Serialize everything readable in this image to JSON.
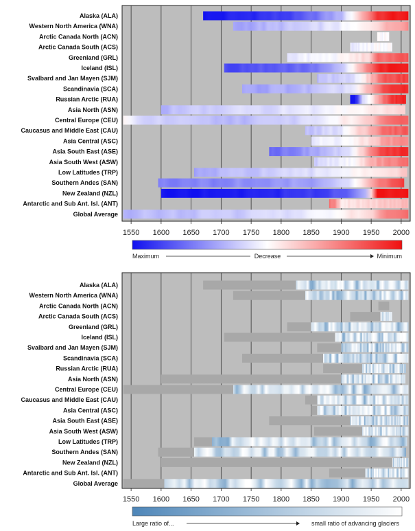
{
  "regions": [
    "Alaska (ALA)",
    "Western North America (WNA)",
    "Arctic Canada North (ACN)",
    "Arctic Canada South (ACS)",
    "Greenland (GRL)",
    "Iceland (ISL)",
    "Svalbard and Jan Mayen (SJM)",
    "Scandinavia (SCA)",
    "Russian Arctic (RUA)",
    "Asia North (ASN)",
    "Central Europe (CEU)",
    "Caucasus and Middle East (CAU)",
    "Asia Central (ASC)",
    "Asia South East (ASE)",
    "Asia South West (ASW)",
    "Low Latitudes (TRP)",
    "Southern Andes (SAN)",
    "New Zealand (NZL)",
    "Antarctic and Sub Ant. Isl. (ANT)",
    "Global Average"
  ],
  "chart_data": [
    {
      "type": "heatmap",
      "title": "",
      "xlabel": "",
      "xlim": [
        1535,
        2015
      ],
      "xticks": [
        1550,
        1600,
        1650,
        1700,
        1750,
        1800,
        1850,
        1900,
        1950,
        2000
      ],
      "colorbar": {
        "colors": [
          "#1010f0",
          "#ffffff",
          "#f01010"
        ],
        "left_label": "Maximum",
        "center_label": "Decrease",
        "right_label": "Minimum"
      },
      "series": [
        {
          "name": "Alaska (ALA)",
          "start": 1670,
          "end": 2012,
          "v": [
            [
              1670,
              0.0
            ],
            [
              1830,
              0.12
            ],
            [
              1900,
              0.35
            ],
            [
              1950,
              0.8
            ],
            [
              1960,
              0.93
            ],
            [
              2012,
              1.0
            ]
          ]
        },
        {
          "name": "Western North America (WNA)",
          "start": 1720,
          "end": 2012,
          "v": [
            [
              1720,
              0.3
            ],
            [
              1850,
              0.4
            ],
            [
              1930,
              0.5
            ],
            [
              1960,
              0.6
            ],
            [
              2000,
              0.72
            ],
            [
              2012,
              0.75
            ]
          ]
        },
        {
          "name": "Arctic Canada North (ACN)",
          "start": 1960,
          "end": 1980,
          "v": [
            [
              1960,
              0.5
            ],
            [
              1980,
              0.5
            ]
          ]
        },
        {
          "name": "Arctic Canada South (ACS)",
          "start": 1915,
          "end": 1985,
          "v": [
            [
              1915,
              0.45
            ],
            [
              1960,
              0.5
            ],
            [
              1965,
              0.5
            ],
            [
              1985,
              0.5
            ]
          ]
        },
        {
          "name": "Greenland (GRL)",
          "start": 1810,
          "end": 2012,
          "v": [
            [
              1810,
              0.45
            ],
            [
              1900,
              0.5
            ],
            [
              1950,
              0.6
            ],
            [
              1960,
              0.8
            ],
            [
              2012,
              0.85
            ]
          ]
        },
        {
          "name": "Iceland (ISL)",
          "start": 1705,
          "end": 2012,
          "v": [
            [
              1705,
              0.12
            ],
            [
              1850,
              0.2
            ],
            [
              1900,
              0.35
            ],
            [
              1950,
              0.8
            ],
            [
              1965,
              0.95
            ],
            [
              2012,
              0.98
            ]
          ]
        },
        {
          "name": "Svalbard and Jan Mayen (SJM)",
          "start": 1860,
          "end": 2012,
          "v": [
            [
              1860,
              0.35
            ],
            [
              1930,
              0.45
            ],
            [
              1955,
              0.7
            ],
            [
              1970,
              0.85
            ],
            [
              2012,
              0.9
            ]
          ]
        },
        {
          "name": "Scandinavia (SCA)",
          "start": 1735,
          "end": 2012,
          "v": [
            [
              1735,
              0.3
            ],
            [
              1850,
              0.35
            ],
            [
              1920,
              0.45
            ],
            [
              1960,
              0.75
            ],
            [
              1975,
              0.9
            ],
            [
              2012,
              0.95
            ]
          ]
        },
        {
          "name": "Russian Arctic (RUA)",
          "start": 1915,
          "end": 2008,
          "v": [
            [
              1915,
              0.0
            ],
            [
              1925,
              0.05
            ],
            [
              1935,
              0.4
            ],
            [
              1960,
              0.65
            ],
            [
              1980,
              0.9
            ],
            [
              2008,
              0.98
            ]
          ]
        },
        {
          "name": "Asia North (ASN)",
          "start": 1600,
          "end": 2007,
          "v": [
            [
              1600,
              0.35
            ],
            [
              1700,
              0.4
            ],
            [
              1850,
              0.45
            ],
            [
              1950,
              0.55
            ],
            [
              2007,
              0.6
            ]
          ]
        },
        {
          "name": "Central Europe (CEU)",
          "start": 1537,
          "end": 2012,
          "v": [
            [
              1537,
              0.5
            ],
            [
              1580,
              0.4
            ],
            [
              1700,
              0.35
            ],
            [
              1800,
              0.38
            ],
            [
              1860,
              0.45
            ],
            [
              1950,
              0.6
            ],
            [
              1970,
              0.8
            ],
            [
              2012,
              0.85
            ]
          ]
        },
        {
          "name": "Caucasus and Middle East (CAU)",
          "start": 1840,
          "end": 2012,
          "v": [
            [
              1840,
              0.35
            ],
            [
              1900,
              0.45
            ],
            [
              1955,
              0.7
            ],
            [
              1970,
              0.8
            ],
            [
              2012,
              0.85
            ]
          ]
        },
        {
          "name": "Asia Central (ASC)",
          "start": 1850,
          "end": 2012,
          "v": [
            [
              1850,
              0.45
            ],
            [
              1920,
              0.5
            ],
            [
              1955,
              0.6
            ],
            [
              1970,
              0.7
            ],
            [
              2012,
              0.75
            ]
          ]
        },
        {
          "name": "Asia South East (ASE)",
          "start": 1780,
          "end": 2012,
          "v": [
            [
              1780,
              0.18
            ],
            [
              1850,
              0.3
            ],
            [
              1920,
              0.45
            ],
            [
              1950,
              0.75
            ],
            [
              1965,
              0.9
            ],
            [
              2012,
              0.95
            ]
          ]
        },
        {
          "name": "Asia South West (ASW)",
          "start": 1855,
          "end": 2012,
          "v": [
            [
              1855,
              0.4
            ],
            [
              1920,
              0.5
            ],
            [
              1960,
              0.7
            ],
            [
              2012,
              0.8
            ]
          ]
        },
        {
          "name": "Low Latitudes (TRP)",
          "start": 1655,
          "end": 2010,
          "v": [
            [
              1655,
              0.3
            ],
            [
              1750,
              0.38
            ],
            [
              1850,
              0.42
            ],
            [
              1950,
              0.55
            ],
            [
              2010,
              0.6
            ]
          ]
        },
        {
          "name": "Southern Andes (SAN)",
          "start": 1595,
          "end": 2005,
          "v": [
            [
              1595,
              0.22
            ],
            [
              1700,
              0.25
            ],
            [
              1850,
              0.3
            ],
            [
              1920,
              0.45
            ],
            [
              1960,
              0.75
            ],
            [
              2005,
              0.92
            ]
          ]
        },
        {
          "name": "New Zealand (NZL)",
          "start": 1600,
          "end": 2012,
          "v": [
            [
              1600,
              0.0
            ],
            [
              1700,
              0.02
            ],
            [
              1850,
              0.08
            ],
            [
              1920,
              0.2
            ],
            [
              1945,
              0.4
            ],
            [
              1960,
              1.0
            ],
            [
              2012,
              1.0
            ]
          ]
        },
        {
          "name": "Antarctic and Sub Ant. Isl. (ANT)",
          "start": 1880,
          "end": 2012,
          "v": [
            [
              1880,
              0.8
            ],
            [
              1890,
              0.75
            ],
            [
              1900,
              0.55
            ],
            [
              1960,
              0.6
            ],
            [
              2012,
              0.65
            ]
          ]
        },
        {
          "name": "Global Average",
          "start": 1537,
          "end": 2012,
          "v": [
            [
              1537,
              0.35
            ],
            [
              1700,
              0.38
            ],
            [
              1850,
              0.45
            ],
            [
              1950,
              0.6
            ],
            [
              1970,
              0.75
            ],
            [
              2012,
              0.8
            ]
          ]
        }
      ]
    },
    {
      "type": "heatmap",
      "title": "",
      "xlabel": "",
      "xlim": [
        1535,
        2015
      ],
      "xticks": [
        1550,
        1600,
        1650,
        1700,
        1750,
        1800,
        1850,
        1900,
        1950,
        2000
      ],
      "colorbar": {
        "colors": [
          "#4e86b8",
          "#ffffff"
        ],
        "left_label": "Large ratio of...",
        "right_label": "small ratio of advancing glaciers"
      },
      "series": [
        {
          "name": "Alaska (ALA)",
          "start": 1670,
          "grey_until": 1825,
          "end": 2012
        },
        {
          "name": "Western North America (WNA)",
          "start": 1720,
          "grey_until": 1840,
          "end": 2012
        },
        {
          "name": "Arctic Canada North (ACN)",
          "start": 1962,
          "grey_until": 1980,
          "end": 1980
        },
        {
          "name": "Arctic Canada South (ACS)",
          "start": 1915,
          "grey_until": 1965,
          "end": 1985
        },
        {
          "name": "Greenland (GRL)",
          "start": 1810,
          "grey_until": 1850,
          "end": 2012
        },
        {
          "name": "Iceland (ISL)",
          "start": 1705,
          "grey_until": 1890,
          "end": 2012
        },
        {
          "name": "Svalbard and Jan Mayen (SJM)",
          "start": 1860,
          "grey_until": 1900,
          "end": 2012
        },
        {
          "name": "Scandinavia (SCA)",
          "start": 1735,
          "grey_until": 1870,
          "end": 2012
        },
        {
          "name": "Russian Arctic (RUA)",
          "start": 1870,
          "grey_until": 1935,
          "end": 2008
        },
        {
          "name": "Asia North (ASN)",
          "start": 1600,
          "grey_until": 1900,
          "end": 2007
        },
        {
          "name": "Central Europe (CEU)",
          "start": 1537,
          "grey_until": 1720,
          "end": 2012
        },
        {
          "name": "Caucasus and Middle East (CAU)",
          "start": 1840,
          "grey_until": 1860,
          "end": 2012
        },
        {
          "name": "Asia Central (ASC)",
          "start": 1850,
          "grey_until": 1860,
          "end": 2012
        },
        {
          "name": "Asia South East (ASE)",
          "start": 1780,
          "grey_until": 1915,
          "end": 2012
        },
        {
          "name": "Asia South West (ASW)",
          "start": 1855,
          "grey_until": 1935,
          "end": 2012
        },
        {
          "name": "Low Latitudes (TRP)",
          "start": 1655,
          "grey_until": 1685,
          "end": 2010
        },
        {
          "name": "Southern Andes (SAN)",
          "start": 1595,
          "grey_until": 1655,
          "end": 2008
        },
        {
          "name": "New Zealand (NZL)",
          "start": 1600,
          "grey_until": 1985,
          "end": 2012
        },
        {
          "name": "Antarctic and Sub Ant. Isl. (ANT)",
          "start": 1880,
          "grey_until": 1940,
          "end": 2012
        },
        {
          "name": "Global Average",
          "start": 1537,
          "grey_until": 1605,
          "end": 2012
        }
      ]
    }
  ]
}
